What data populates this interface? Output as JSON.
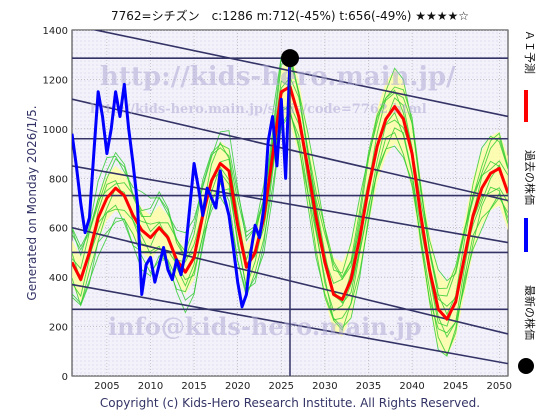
{
  "header": {
    "title": "7762=シチズン　c:1286  m:712(-45%)  t:656(-49%) ★★★★☆"
  },
  "side_label": "Generated on Monday 2026/1/5.",
  "watermarks": {
    "url": "http://kids-hero.main.jp/",
    "url_small": "http://kids-hero.main.jp/sysis/code=7762.html",
    "email": "info@kids-hero.main.jp"
  },
  "footer": "Copyright (c) Kids-Hero Research Institute. All Rights Reserved.",
  "legend": [
    {
      "label": "ＡＩ予測",
      "color": "#ff0000",
      "kind": "line"
    },
    {
      "label": "過去の株価",
      "color": "#0000ff",
      "kind": "line"
    },
    {
      "label": "最新の株価",
      "color": "#000000",
      "kind": "dot"
    }
  ],
  "colors": {
    "ai_prediction": "#ff0000",
    "past_price": "#0000ff",
    "latest_price": "#000000",
    "band_fill": "#ffff99",
    "band_lines": "#33cc33",
    "trend_lines": "#333366",
    "background": "#f0eef8"
  },
  "chart_data": {
    "type": "line",
    "xlim": [
      2001,
      2051
    ],
    "ylim": [
      0,
      1400
    ],
    "x_ticks": [
      2005,
      2010,
      2015,
      2020,
      2025,
      2030,
      2035,
      2040,
      2045,
      2050
    ],
    "y_ticks": [
      0,
      200,
      400,
      600,
      800,
      1000,
      1200,
      1400
    ],
    "grid": true,
    "latest_point": {
      "x": 2026.0,
      "y": 1286
    },
    "horizontal_levels": [
      1286,
      960,
      730,
      500,
      270
    ],
    "trend_lines": [
      {
        "x": [
          2001,
          2051
        ],
        "y": [
          1420,
          1050
        ]
      },
      {
        "x": [
          2001,
          2051
        ],
        "y": [
          1120,
          710
        ]
      },
      {
        "x": [
          2001,
          2051
        ],
        "y": [
          850,
          540
        ]
      },
      {
        "x": [
          2001,
          2051
        ],
        "y": [
          600,
          170
        ]
      },
      {
        "x": [
          2001,
          2051
        ],
        "y": [
          370,
          50
        ]
      }
    ],
    "series": [
      {
        "name": "ＡＩ予測",
        "color": "#ff0000",
        "x": [
          2001,
          2002,
          2003,
          2004,
          2005,
          2006,
          2007,
          2008,
          2009,
          2010,
          2011,
          2012,
          2013,
          2014,
          2015,
          2016,
          2017,
          2018,
          2019,
          2020,
          2021,
          2022,
          2023,
          2024,
          2025,
          2026,
          2027,
          2028,
          2029,
          2030,
          2031,
          2032,
          2033,
          2034,
          2035,
          2036,
          2037,
          2038,
          2039,
          2040,
          2041,
          2042,
          2043,
          2044,
          2045,
          2046,
          2047,
          2048,
          2049,
          2050,
          2051
        ],
        "y": [
          460,
          390,
          500,
          640,
          720,
          760,
          730,
          650,
          590,
          560,
          600,
          560,
          470,
          420,
          480,
          650,
          790,
          860,
          830,
          610,
          440,
          500,
          640,
          890,
          1150,
          1170,
          1050,
          850,
          640,
          460,
          330,
          310,
          390,
          560,
          760,
          930,
          1040,
          1090,
          1040,
          900,
          650,
          430,
          270,
          230,
          300,
          480,
          650,
          760,
          820,
          840,
          740
        ]
      },
      {
        "name": "過去の株価",
        "color": "#0000ff",
        "x": [
          2001,
          2001.5,
          2002,
          2002.5,
          2003,
          2003.5,
          2004,
          2004.5,
          2005,
          2005.5,
          2006,
          2006.5,
          2007,
          2007.5,
          2008,
          2008.5,
          2009,
          2009.5,
          2010,
          2010.5,
          2011,
          2011.5,
          2012,
          2012.5,
          2013,
          2013.5,
          2014,
          2014.5,
          2015,
          2015.5,
          2016,
          2016.5,
          2017,
          2017.5,
          2018,
          2018.5,
          2019,
          2019.5,
          2020,
          2020.5,
          2021,
          2021.5,
          2022,
          2022.5,
          2023,
          2023.5,
          2024,
          2024.5,
          2025,
          2025.5,
          2026
        ],
        "y": [
          980,
          850,
          700,
          580,
          640,
          900,
          1150,
          1050,
          900,
          1000,
          1150,
          1050,
          1180,
          1000,
          860,
          700,
          330,
          450,
          480,
          380,
          450,
          520,
          430,
          390,
          470,
          410,
          500,
          680,
          860,
          760,
          650,
          760,
          720,
          680,
          830,
          720,
          650,
          520,
          380,
          280,
          330,
          500,
          610,
          560,
          680,
          950,
          1050,
          850,
          1120,
          800,
          1286
        ]
      }
    ]
  }
}
